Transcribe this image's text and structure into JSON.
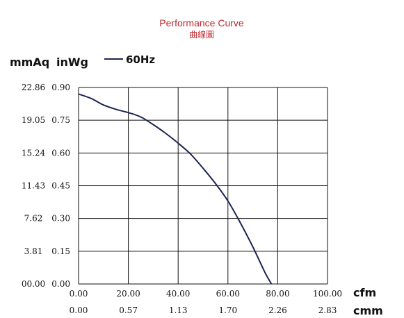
{
  "chart_data": {
    "type": "line",
    "title": "Performance Curve",
    "subtitle": "曲線圖",
    "left_axis_unit": "mmAq",
    "ylabel": "inWg",
    "xlabel": "cfm",
    "x2label": "cmm",
    "xlim": [
      0,
      100
    ],
    "ylim": [
      0,
      0.9
    ],
    "grid": true,
    "legend_position": "top-left",
    "x_ticks": [
      "0.00",
      "20.00",
      "40.00",
      "60.00",
      "80.00",
      "100.00"
    ],
    "x2_ticks": [
      "0.00",
      "0.57",
      "1.13",
      "1.70",
      "2.26",
      "2.83"
    ],
    "y_ticks": [
      "0.00",
      "0.15",
      "0.30",
      "0.45",
      "0.60",
      "0.75",
      "0.90"
    ],
    "y2_ticks": [
      "00.00",
      "3.81",
      "7.62",
      "11.43",
      "15.24",
      "19.05",
      "22.86"
    ],
    "series": [
      {
        "name": "60Hz",
        "color": "#1b2550",
        "x": [
          0,
          5,
          10,
          15,
          20,
          25,
          30,
          35,
          40,
          45,
          50,
          55,
          60,
          65,
          70,
          75,
          77.5
        ],
        "y": [
          0.87,
          0.85,
          0.82,
          0.8,
          0.785,
          0.765,
          0.73,
          0.69,
          0.645,
          0.595,
          0.53,
          0.46,
          0.38,
          0.28,
          0.17,
          0.05,
          0.0
        ]
      }
    ]
  }
}
